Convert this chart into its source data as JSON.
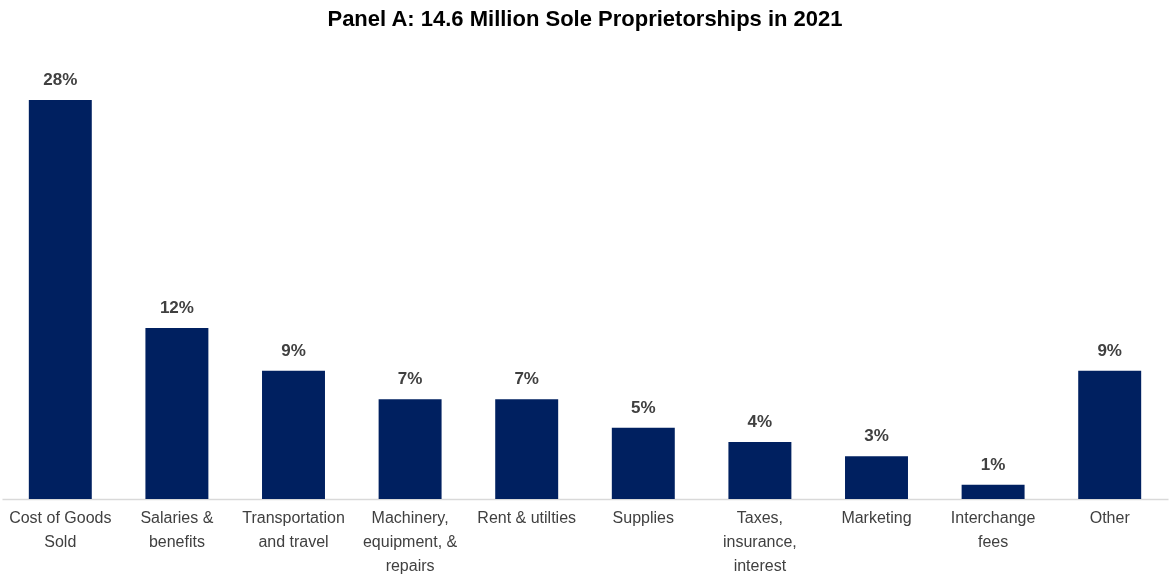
{
  "chart_data": {
    "type": "bar",
    "title": "Panel A: 14.6 Million Sole Proprietorships in 2021",
    "categories": [
      "Cost of Goods Sold",
      "Salaries & benefits",
      "Transportation and travel",
      "Machinery, equipment, & repairs",
      "Rent & utilties",
      "Supplies",
      "Taxes, insurance, interest",
      "Marketing",
      "Interchange fees",
      "Other"
    ],
    "values": [
      28,
      12,
      9,
      7,
      7,
      5,
      4,
      3,
      1,
      9
    ],
    "value_labels": [
      "28%",
      "12%",
      "9%",
      "7%",
      "7%",
      "5%",
      "4%",
      "3%",
      "1%",
      "9%"
    ],
    "color": "#002060",
    "tick_labels": "x"
  }
}
